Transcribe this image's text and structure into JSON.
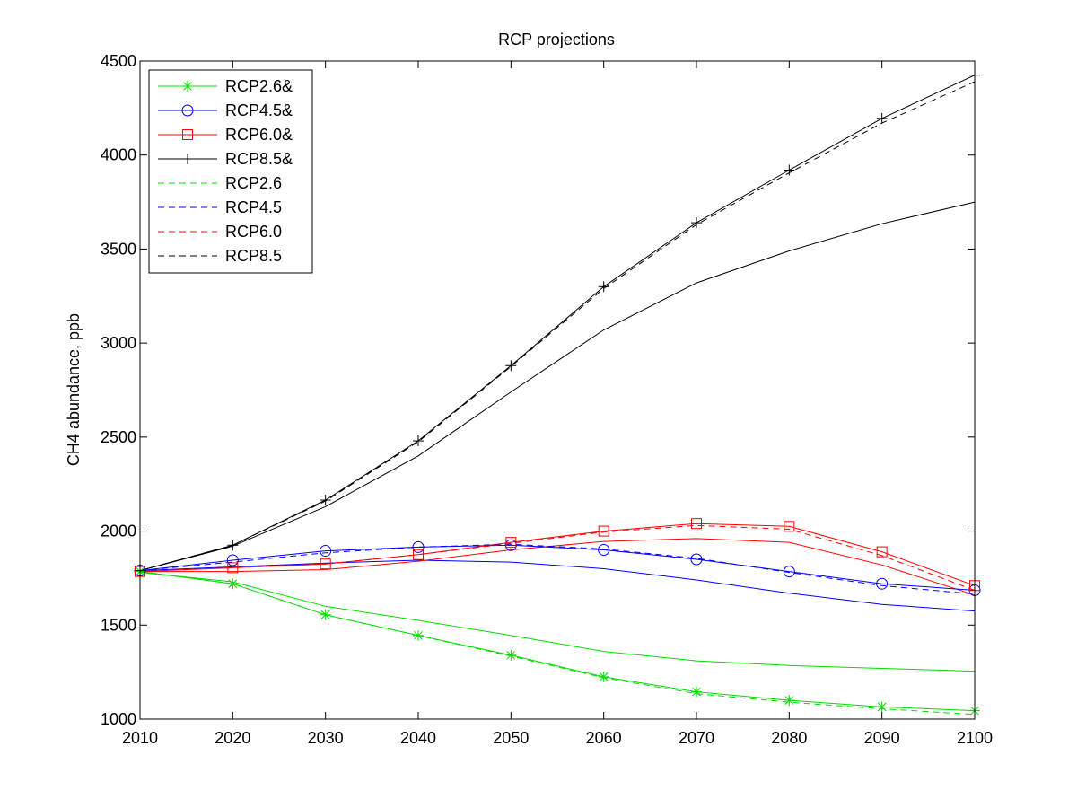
{
  "chart_data": {
    "type": "line",
    "title": "RCP projections",
    "xlabel": "",
    "ylabel": "CH4 abundance, ppb",
    "xlim": [
      2010,
      2100
    ],
    "ylim": [
      1000,
      4500
    ],
    "x_ticks": [
      2010,
      2020,
      2030,
      2040,
      2050,
      2060,
      2070,
      2080,
      2090,
      2100
    ],
    "y_ticks": [
      1000,
      1500,
      2000,
      2500,
      3000,
      3500,
      4000,
      4500
    ],
    "grid": false,
    "legend_position": "top-left",
    "x": [
      2010,
      2020,
      2030,
      2040,
      2050,
      2060,
      2070,
      2080,
      2090,
      2100
    ],
    "series": [
      {
        "name": "RCP2.6&",
        "color": "#00dd00",
        "dash": "solid",
        "marker": "asterisk",
        "values": [
          1785,
          1720,
          1555,
          1445,
          1340,
          1225,
          1145,
          1100,
          1065,
          1045
        ]
      },
      {
        "name": "RCP4.5&",
        "color": "#0000ff",
        "dash": "solid",
        "marker": "circle",
        "values": [
          1790,
          1845,
          1895,
          1915,
          1925,
          1900,
          1850,
          1785,
          1720,
          1685
        ]
      },
      {
        "name": "RCP6.0&",
        "color": "#ff0000",
        "dash": "solid",
        "marker": "square",
        "values": [
          1785,
          1805,
          1825,
          1875,
          1940,
          2000,
          2040,
          2025,
          1890,
          1710
        ]
      },
      {
        "name": "RCP8.5&",
        "color": "#000000",
        "dash": "solid",
        "marker": "plus",
        "values": [
          1790,
          1925,
          2165,
          2480,
          2880,
          3300,
          3640,
          3920,
          4195,
          4425
        ]
      },
      {
        "name": "RCP2.6",
        "color": "#00dd00",
        "dash": "dashed",
        "marker": "none",
        "values": [
          1785,
          1720,
          1555,
          1445,
          1335,
          1220,
          1135,
          1090,
          1055,
          1025
        ]
      },
      {
        "name": "RCP4.5",
        "color": "#0000ff",
        "dash": "dashed",
        "marker": "none",
        "values": [
          1790,
          1835,
          1885,
          1915,
          1930,
          1905,
          1855,
          1780,
          1710,
          1665
        ]
      },
      {
        "name": "RCP6.0",
        "color": "#ff0000",
        "dash": "dashed",
        "marker": "none",
        "values": [
          1785,
          1805,
          1825,
          1875,
          1935,
          1995,
          2030,
          2010,
          1870,
          1685
        ]
      },
      {
        "name": "RCP8.5",
        "color": "#000000",
        "dash": "dashed",
        "marker": "none",
        "values": [
          1790,
          1925,
          2160,
          2475,
          2875,
          3290,
          3630,
          3905,
          4170,
          4390
        ]
      }
    ],
    "unlabeled_series": [
      {
        "color": "#00dd00",
        "dash": "solid",
        "values": [
          1780,
          1730,
          1600,
          1525,
          1445,
          1360,
          1310,
          1285,
          1270,
          1255
        ]
      },
      {
        "color": "#0000ff",
        "dash": "solid",
        "values": [
          1790,
          1810,
          1830,
          1845,
          1835,
          1800,
          1740,
          1670,
          1610,
          1575
        ]
      },
      {
        "color": "#ff0000",
        "dash": "solid",
        "values": [
          1785,
          1785,
          1795,
          1840,
          1900,
          1945,
          1960,
          1940,
          1820,
          1660
        ]
      },
      {
        "color": "#000000",
        "dash": "solid",
        "values": [
          1790,
          1920,
          2130,
          2400,
          2740,
          3070,
          3320,
          3490,
          3635,
          3750
        ]
      }
    ]
  }
}
